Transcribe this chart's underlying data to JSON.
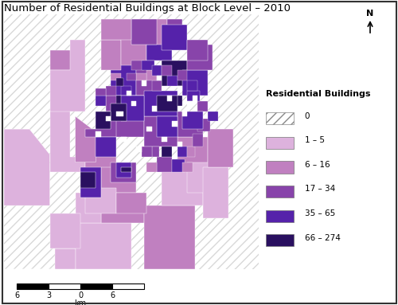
{
  "title": "Number of Residential Buildings at Block Level – 2010",
  "title_fontsize": 9.5,
  "background_color": "#ffffff",
  "legend_title": "Residential Buildings",
  "legend_entries": [
    {
      "label": "0",
      "color": null,
      "hatch": true
    },
    {
      "label": "1 – 5",
      "color": "#ddb2dd"
    },
    {
      "label": "6 – 16",
      "color": "#c080c0"
    },
    {
      "label": "17 – 34",
      "color": "#8844aa"
    },
    {
      "label": "35 – 65",
      "color": "#5522aa"
    },
    {
      "label": "66 – 274",
      "color": "#2a1060"
    }
  ],
  "scalebar_ticks": [
    "6",
    "3",
    "0",
    "6"
  ],
  "scalebar_label": "km",
  "hatch_pattern": "///",
  "hatch_bg_color": "#d8d8d8",
  "white_bg_color": "#ffffff",
  "border_color": "#444444"
}
